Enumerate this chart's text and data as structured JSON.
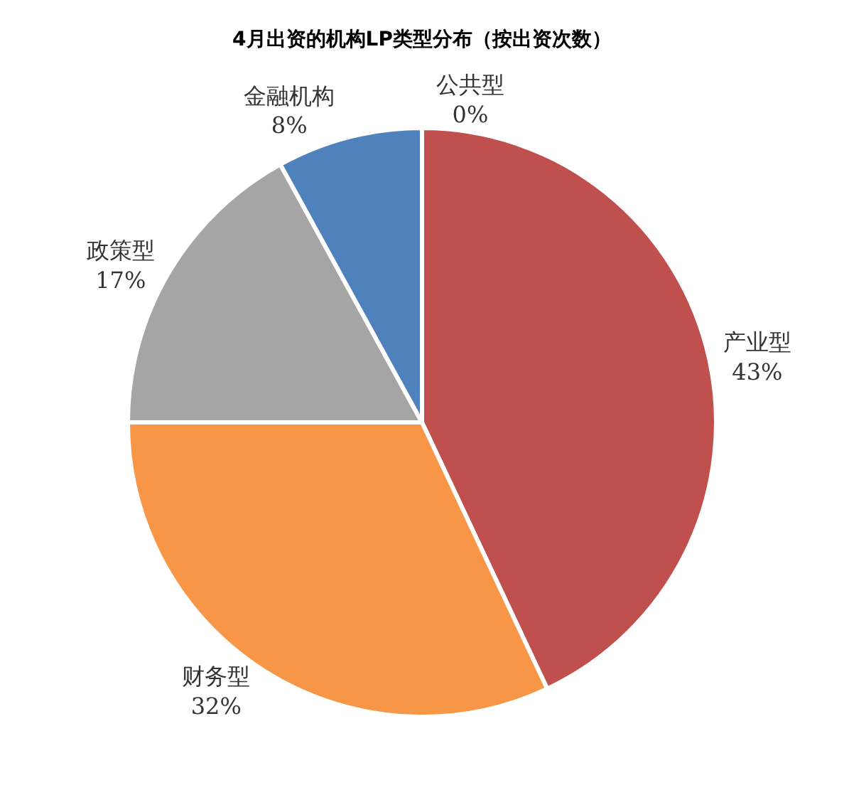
{
  "chart_data": {
    "type": "pie",
    "title": "4月出资的机构LP类型分布（按出资次数）",
    "categories": [
      "产业型",
      "财务型",
      "政策型",
      "金融机构",
      "公共型"
    ],
    "values": [
      43,
      32,
      17,
      8,
      0
    ],
    "value_labels": [
      "43%",
      "32%",
      "17%",
      "8%",
      "0%"
    ],
    "colors": [
      "#c0504d",
      "#f79646",
      "#a5a5a5",
      "#4f81bd",
      "#8064a2"
    ],
    "legend": false
  }
}
